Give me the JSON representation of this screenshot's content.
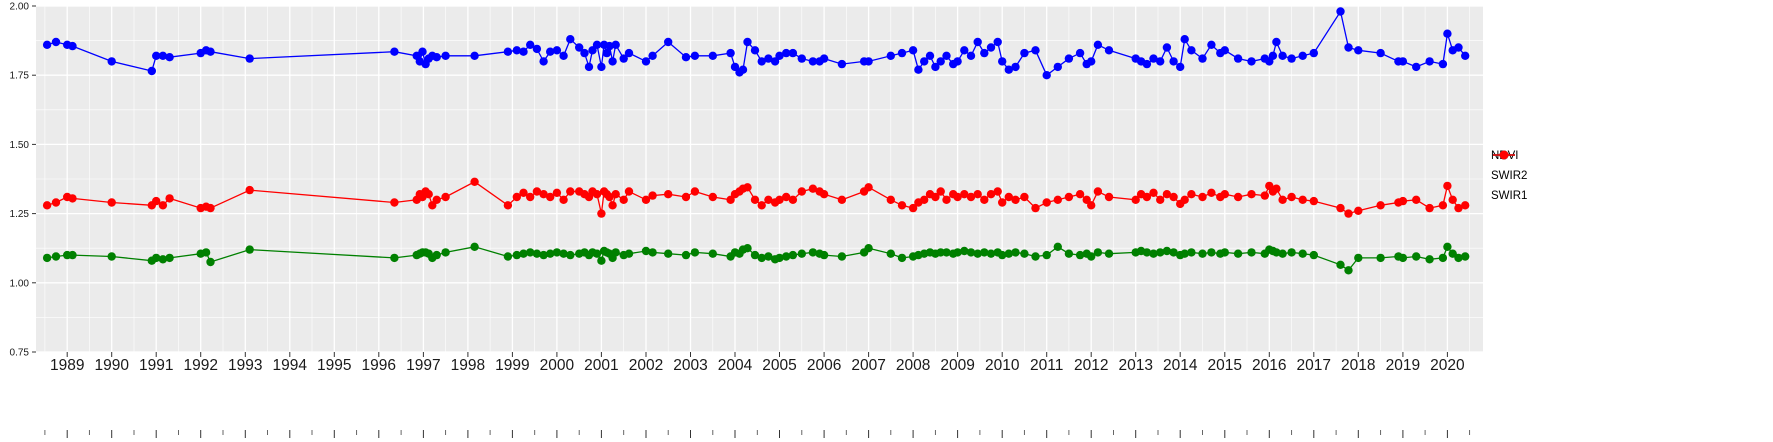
{
  "chart_data": {
    "type": "line",
    "title": "",
    "xlabel": "",
    "ylabel": "",
    "xlim": [
      1988.3,
      2020.8
    ],
    "ylim": [
      0.75,
      2.0
    ],
    "grid": true,
    "panel_bg": "#EBEBEB",
    "grid_color": "#FFFFFF",
    "tick_color": "#333333",
    "label_color": "#1a1a1a",
    "y_ticks": [
      "0.75",
      "1.00",
      "1.25",
      "1.50",
      "1.75",
      "2.00"
    ],
    "y_tick_values": [
      0.75,
      1.0,
      1.25,
      1.5,
      1.75,
      2.0
    ],
    "x_tick_values": [
      1989,
      1990,
      1991,
      1992,
      1993,
      1994,
      1995,
      1996,
      1997,
      1998,
      1999,
      2000,
      2001,
      2002,
      2003,
      2004,
      2005,
      2006,
      2007,
      2008,
      2009,
      2010,
      2011,
      2012,
      2013,
      2014,
      2015,
      2016,
      2017,
      2018,
      2019,
      2020
    ],
    "x": [
      1988.55,
      1988.75,
      1989.0,
      1989.12,
      1990.0,
      1990.9,
      1991.0,
      1991.15,
      1991.3,
      1992.0,
      1992.12,
      1992.22,
      1993.1,
      1996.35,
      1996.85,
      1996.92,
      1996.98,
      1997.05,
      1997.12,
      1997.2,
      1997.3,
      1997.5,
      1998.15,
      1998.9,
      1999.1,
      1999.25,
      1999.4,
      1999.55,
      1999.7,
      1999.85,
      2000.0,
      2000.15,
      2000.3,
      2000.5,
      2000.62,
      2000.72,
      2000.8,
      2000.9,
      2001.0,
      2001.06,
      2001.12,
      2001.18,
      2001.25,
      2001.32,
      2001.5,
      2001.62,
      2002.0,
      2002.15,
      2002.5,
      2002.9,
      2003.1,
      2003.5,
      2003.9,
      2004.0,
      2004.1,
      2004.18,
      2004.28,
      2004.45,
      2004.6,
      2004.75,
      2004.9,
      2005.0,
      2005.15,
      2005.3,
      2005.5,
      2005.75,
      2005.9,
      2006.0,
      2006.4,
      2006.9,
      2007.0,
      2007.5,
      2007.75,
      2008.0,
      2008.12,
      2008.25,
      2008.38,
      2008.5,
      2008.62,
      2008.75,
      2008.9,
      2009.0,
      2009.15,
      2009.3,
      2009.45,
      2009.6,
      2009.75,
      2009.9,
      2010.0,
      2010.15,
      2010.3,
      2010.5,
      2010.75,
      2011.0,
      2011.25,
      2011.5,
      2011.75,
      2011.9,
      2012.0,
      2012.15,
      2012.4,
      2013.0,
      2013.12,
      2013.25,
      2013.4,
      2013.55,
      2013.7,
      2013.85,
      2014.0,
      2014.1,
      2014.25,
      2014.5,
      2014.7,
      2014.9,
      2015.0,
      2015.3,
      2015.6,
      2015.9,
      2016.0,
      2016.08,
      2016.16,
      2016.3,
      2016.5,
      2016.75,
      2017.0,
      2017.6,
      2017.78,
      2018.0,
      2018.5,
      2018.9,
      2019.0,
      2019.3,
      2019.6,
      2019.9,
      2020.0,
      2020.12,
      2020.25,
      2020.4
    ],
    "series": [
      {
        "name": "NDVI",
        "color": "#0000FF",
        "values": [
          1.86,
          1.87,
          1.86,
          1.855,
          1.8,
          1.765,
          1.82,
          1.82,
          1.815,
          1.83,
          1.84,
          1.835,
          1.81,
          1.835,
          1.82,
          1.8,
          1.835,
          1.79,
          1.81,
          1.82,
          1.815,
          1.82,
          1.82,
          1.835,
          1.84,
          1.835,
          1.86,
          1.845,
          1.8,
          1.835,
          1.84,
          1.82,
          1.88,
          1.85,
          1.83,
          1.78,
          1.84,
          1.86,
          1.78,
          1.86,
          1.83,
          1.855,
          1.8,
          1.86,
          1.81,
          1.83,
          1.8,
          1.82,
          1.87,
          1.815,
          1.82,
          1.82,
          1.83,
          1.78,
          1.76,
          1.77,
          1.87,
          1.84,
          1.8,
          1.81,
          1.8,
          1.82,
          1.83,
          1.83,
          1.81,
          1.8,
          1.8,
          1.81,
          1.79,
          1.8,
          1.8,
          1.82,
          1.83,
          1.84,
          1.77,
          1.8,
          1.82,
          1.78,
          1.8,
          1.82,
          1.79,
          1.8,
          1.84,
          1.82,
          1.87,
          1.83,
          1.85,
          1.87,
          1.8,
          1.77,
          1.78,
          1.83,
          1.84,
          1.75,
          1.78,
          1.81,
          1.83,
          1.79,
          1.8,
          1.86,
          1.84,
          1.81,
          1.8,
          1.79,
          1.81,
          1.8,
          1.85,
          1.8,
          1.78,
          1.88,
          1.84,
          1.81,
          1.86,
          1.83,
          1.84,
          1.81,
          1.8,
          1.81,
          1.8,
          1.82,
          1.87,
          1.82,
          1.81,
          1.82,
          1.83,
          1.98,
          1.85,
          1.84,
          1.83,
          1.8,
          1.8,
          1.78,
          1.8,
          1.79,
          1.9,
          1.84,
          1.85,
          1.82
        ]
      },
      {
        "name": "SWIR2",
        "color": "#008000",
        "values": [
          1.09,
          1.095,
          1.1,
          1.1,
          1.095,
          1.08,
          1.09,
          1.085,
          1.09,
          1.105,
          1.11,
          1.075,
          1.12,
          1.09,
          1.1,
          1.105,
          1.11,
          1.11,
          1.105,
          1.09,
          1.1,
          1.11,
          1.13,
          1.095,
          1.1,
          1.105,
          1.11,
          1.105,
          1.1,
          1.105,
          1.11,
          1.105,
          1.1,
          1.105,
          1.11,
          1.1,
          1.11,
          1.105,
          1.08,
          1.115,
          1.11,
          1.105,
          1.09,
          1.11,
          1.1,
          1.105,
          1.115,
          1.11,
          1.105,
          1.1,
          1.11,
          1.105,
          1.095,
          1.11,
          1.105,
          1.12,
          1.125,
          1.1,
          1.09,
          1.095,
          1.085,
          1.09,
          1.095,
          1.1,
          1.105,
          1.11,
          1.105,
          1.1,
          1.095,
          1.11,
          1.125,
          1.105,
          1.09,
          1.095,
          1.1,
          1.105,
          1.11,
          1.105,
          1.11,
          1.11,
          1.105,
          1.11,
          1.115,
          1.11,
          1.105,
          1.11,
          1.105,
          1.11,
          1.1,
          1.105,
          1.11,
          1.105,
          1.095,
          1.1,
          1.13,
          1.105,
          1.1,
          1.105,
          1.095,
          1.11,
          1.105,
          1.11,
          1.115,
          1.11,
          1.105,
          1.11,
          1.115,
          1.11,
          1.1,
          1.105,
          1.11,
          1.105,
          1.11,
          1.105,
          1.11,
          1.105,
          1.11,
          1.105,
          1.12,
          1.115,
          1.11,
          1.105,
          1.11,
          1.105,
          1.1,
          1.065,
          1.045,
          1.09,
          1.09,
          1.095,
          1.09,
          1.095,
          1.085,
          1.09,
          1.13,
          1.105,
          1.09,
          1.095
        ]
      },
      {
        "name": "SWIR1",
        "color": "#FF0000",
        "values": [
          1.28,
          1.29,
          1.31,
          1.305,
          1.29,
          1.28,
          1.295,
          1.28,
          1.305,
          1.27,
          1.275,
          1.27,
          1.335,
          1.29,
          1.3,
          1.32,
          1.31,
          1.33,
          1.32,
          1.28,
          1.3,
          1.31,
          1.365,
          1.28,
          1.31,
          1.325,
          1.31,
          1.33,
          1.32,
          1.31,
          1.325,
          1.3,
          1.33,
          1.33,
          1.32,
          1.31,
          1.33,
          1.32,
          1.25,
          1.33,
          1.32,
          1.31,
          1.28,
          1.32,
          1.3,
          1.33,
          1.3,
          1.315,
          1.32,
          1.31,
          1.33,
          1.31,
          1.3,
          1.32,
          1.33,
          1.34,
          1.345,
          1.3,
          1.28,
          1.3,
          1.29,
          1.3,
          1.31,
          1.3,
          1.33,
          1.34,
          1.33,
          1.32,
          1.3,
          1.33,
          1.345,
          1.3,
          1.28,
          1.27,
          1.29,
          1.3,
          1.32,
          1.31,
          1.33,
          1.3,
          1.32,
          1.31,
          1.32,
          1.31,
          1.32,
          1.3,
          1.32,
          1.33,
          1.29,
          1.31,
          1.3,
          1.31,
          1.27,
          1.29,
          1.3,
          1.31,
          1.32,
          1.3,
          1.28,
          1.33,
          1.31,
          1.3,
          1.32,
          1.31,
          1.325,
          1.3,
          1.32,
          1.31,
          1.285,
          1.3,
          1.32,
          1.31,
          1.325,
          1.31,
          1.32,
          1.31,
          1.32,
          1.315,
          1.35,
          1.33,
          1.34,
          1.3,
          1.31,
          1.3,
          1.295,
          1.27,
          1.25,
          1.26,
          1.28,
          1.29,
          1.295,
          1.3,
          1.27,
          1.28,
          1.35,
          1.3,
          1.27,
          1.28
        ]
      }
    ],
    "legend": {
      "position": "right",
      "entries": [
        {
          "label": "NDVI",
          "color": "#0000FF"
        },
        {
          "label": "SWIR2",
          "color": "#008000"
        },
        {
          "label": "SWIR1",
          "color": "#FF0000"
        }
      ]
    }
  }
}
